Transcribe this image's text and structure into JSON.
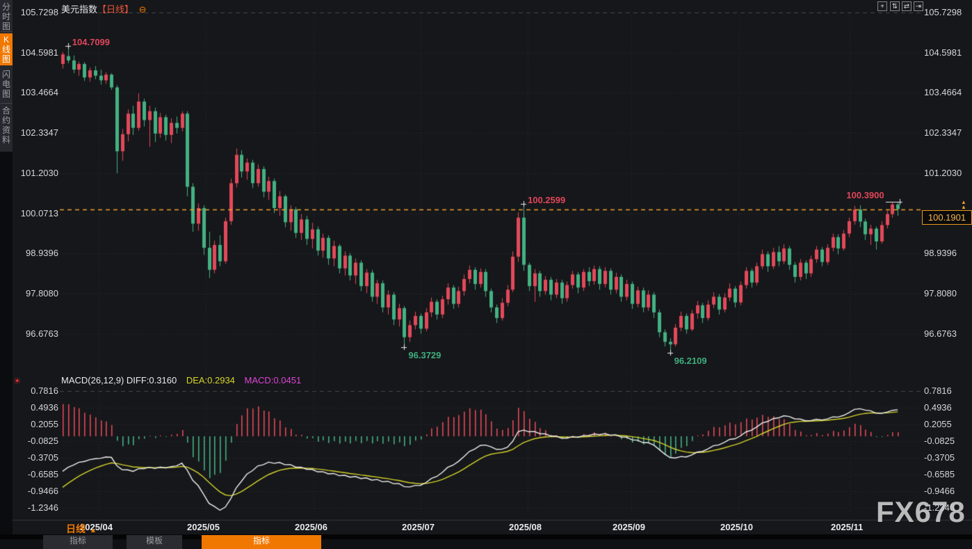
{
  "header": {
    "symbol": "美元指数",
    "period_tag": "【日线】",
    "settings_icon": "gear-icon"
  },
  "sidebar": {
    "items": [
      {
        "label": "分时图",
        "active": false
      },
      {
        "label": "K线图",
        "active": true
      },
      {
        "label": "闪电图",
        "active": false
      },
      {
        "label": "合约资料",
        "active": false
      }
    ]
  },
  "toolbar": {
    "icons": [
      {
        "name": "crosshair-icon",
        "glyph": "+"
      },
      {
        "name": "zoom-y-axis-icon",
        "glyph": "⇅"
      },
      {
        "name": "zoom-x-axis-icon",
        "glyph": "⇄"
      },
      {
        "name": "pan-right-icon",
        "glyph": "⇥"
      }
    ]
  },
  "price_axis_labels": [
    "105.7298",
    "104.5981",
    "103.4664",
    "102.3347",
    "101.2030",
    "100.0713",
    "98.9396",
    "97.8080",
    "96.6763"
  ],
  "macd_axis_labels": [
    "0.7816",
    "0.4936",
    "0.2055",
    "-0.0825",
    "-0.3705",
    "-0.6585",
    "-0.9466",
    "-1.2346"
  ],
  "date_labels": [
    "2025/04",
    "2025/05",
    "2025/06",
    "2025/07",
    "2025/08",
    "2025/09",
    "2025/10",
    "2025/11"
  ],
  "macd_header": {
    "main": "MACD(26,12,9) DIFF:0.3160",
    "dea": "DEA:0.2934",
    "macd": "MACD:0.0451"
  },
  "current_price_label": "100.1901",
  "bottom": {
    "period_label": "日线",
    "period_arrow": "▲",
    "tabs": [
      {
        "label": "指标",
        "active": false
      },
      {
        "label": "模板",
        "active": false
      },
      {
        "label": "指标",
        "active": true
      }
    ]
  },
  "watermark": "FX678",
  "colors": {
    "up": "#e2495a",
    "down": "#43b183",
    "dif_line": "#f0f0f0",
    "dea_line": "#d4d42c",
    "accent_orange": "#f07800",
    "current_price_line": "#f0a030",
    "annotation_up": "#e0455a",
    "annotation_down": "#3fae7e"
  },
  "chart_data": {
    "type": "candlestick+macd",
    "symbol": "美元指数",
    "interval": "日线",
    "price_axis_range": [
      96.1,
      105.7298
    ],
    "price_axis_ticks": [
      105.7298,
      104.5981,
      103.4664,
      102.3347,
      101.203,
      100.0713,
      98.9396,
      97.808,
      96.6763
    ],
    "date_ticks": [
      "2025/04",
      "2025/05",
      "2025/06",
      "2025/07",
      "2025/08",
      "2025/09",
      "2025/10",
      "2025/11"
    ],
    "current_price": 100.1901,
    "candles": [
      [
        104.28,
        104.62,
        104.15,
        104.55
      ],
      [
        104.5,
        104.7099,
        104.3,
        104.38
      ],
      [
        104.38,
        104.52,
        104.02,
        104.12
      ],
      [
        104.12,
        104.35,
        103.95,
        104.28
      ],
      [
        104.28,
        104.33,
        103.8,
        103.9
      ],
      [
        103.9,
        104.18,
        103.78,
        104.1
      ],
      [
        104.1,
        104.22,
        103.85,
        103.95
      ],
      [
        103.95,
        104.12,
        103.7,
        103.82
      ],
      [
        103.82,
        104.05,
        103.72,
        103.98
      ],
      [
        103.98,
        104.02,
        103.55,
        103.62
      ],
      [
        103.62,
        103.68,
        101.2,
        101.82
      ],
      [
        101.82,
        102.45,
        101.55,
        102.3
      ],
      [
        102.3,
        103.0,
        102.1,
        102.88
      ],
      [
        102.88,
        103.1,
        102.28,
        102.48
      ],
      [
        102.48,
        103.45,
        102.4,
        103.22
      ],
      [
        103.22,
        103.3,
        102.52,
        102.7
      ],
      [
        102.7,
        103.1,
        101.95,
        102.95
      ],
      [
        102.95,
        103.05,
        102.08,
        102.32
      ],
      [
        102.32,
        102.9,
        102.2,
        102.78
      ],
      [
        102.78,
        102.85,
        102.12,
        102.28
      ],
      [
        102.28,
        102.75,
        102.05,
        102.62
      ],
      [
        102.62,
        102.8,
        102.32,
        102.48
      ],
      [
        102.48,
        102.95,
        102.38,
        102.88
      ],
      [
        102.88,
        102.95,
        100.55,
        100.82
      ],
      [
        100.82,
        100.92,
        99.55,
        99.78
      ],
      [
        99.78,
        100.35,
        99.58,
        100.22
      ],
      [
        100.22,
        100.3,
        98.9,
        99.1
      ],
      [
        99.1,
        99.55,
        98.25,
        98.48
      ],
      [
        98.48,
        99.3,
        98.38,
        99.18
      ],
      [
        99.18,
        99.45,
        98.58,
        98.72
      ],
      [
        98.72,
        99.95,
        98.65,
        99.85
      ],
      [
        99.85,
        101.05,
        99.75,
        100.92
      ],
      [
        100.92,
        101.9,
        100.8,
        101.72
      ],
      [
        101.72,
        101.85,
        101.08,
        101.25
      ],
      [
        101.25,
        101.62,
        101.02,
        101.5
      ],
      [
        101.5,
        101.58,
        100.78,
        100.92
      ],
      [
        100.92,
        101.45,
        100.82,
        101.32
      ],
      [
        101.32,
        101.4,
        100.52,
        100.68
      ],
      [
        100.68,
        101.1,
        100.45,
        100.98
      ],
      [
        100.98,
        101.05,
        100.08,
        100.22
      ],
      [
        100.22,
        100.7,
        100.0,
        100.55
      ],
      [
        100.55,
        100.6,
        99.68,
        99.82
      ],
      [
        99.82,
        100.3,
        99.58,
        100.18
      ],
      [
        100.18,
        100.25,
        99.38,
        99.52
      ],
      [
        99.52,
        100.05,
        99.32,
        99.9
      ],
      [
        99.9,
        100.0,
        99.18,
        99.35
      ],
      [
        99.35,
        99.8,
        99.08,
        99.62
      ],
      [
        99.62,
        99.7,
        98.88,
        99.02
      ],
      [
        99.02,
        99.5,
        98.82,
        99.38
      ],
      [
        99.38,
        99.45,
        98.62,
        98.8
      ],
      [
        98.8,
        99.3,
        98.58,
        99.15
      ],
      [
        99.15,
        99.2,
        98.38,
        98.52
      ],
      [
        98.52,
        99.0,
        98.32,
        98.88
      ],
      [
        98.88,
        98.95,
        98.18,
        98.32
      ],
      [
        98.32,
        98.8,
        98.08,
        98.68
      ],
      [
        98.68,
        98.75,
        97.88,
        98.02
      ],
      [
        98.02,
        98.5,
        97.82,
        98.4
      ],
      [
        98.4,
        98.48,
        97.58,
        97.72
      ],
      [
        97.72,
        98.2,
        97.52,
        98.1
      ],
      [
        98.1,
        98.18,
        97.28,
        97.42
      ],
      [
        97.42,
        97.9,
        97.22,
        97.78
      ],
      [
        97.78,
        97.85,
        96.92,
        97.08
      ],
      [
        97.08,
        97.52,
        96.88,
        97.4
      ],
      [
        97.4,
        97.46,
        96.3729,
        96.58
      ],
      [
        96.58,
        97.05,
        96.45,
        96.92
      ],
      [
        96.92,
        97.3,
        96.8,
        97.18
      ],
      [
        97.18,
        97.25,
        96.68,
        96.82
      ],
      [
        96.82,
        97.4,
        96.75,
        97.28
      ],
      [
        97.28,
        97.7,
        97.15,
        97.58
      ],
      [
        97.58,
        97.65,
        97.08,
        97.22
      ],
      [
        97.22,
        97.75,
        97.12,
        97.65
      ],
      [
        97.65,
        98.1,
        97.5,
        97.98
      ],
      [
        97.98,
        98.05,
        97.38,
        97.52
      ],
      [
        97.52,
        98.0,
        97.42,
        97.88
      ],
      [
        97.88,
        98.35,
        97.75,
        98.22
      ],
      [
        98.22,
        98.6,
        98.1,
        98.48
      ],
      [
        98.48,
        98.55,
        97.92,
        98.08
      ],
      [
        98.08,
        98.52,
        97.98,
        98.42
      ],
      [
        98.42,
        98.5,
        97.72,
        97.88
      ],
      [
        97.88,
        97.95,
        97.28,
        97.42
      ],
      [
        97.42,
        97.5,
        96.98,
        97.12
      ],
      [
        97.12,
        97.68,
        97.05,
        97.55
      ],
      [
        97.55,
        98.05,
        97.45,
        97.92
      ],
      [
        97.92,
        99.0,
        97.85,
        98.85
      ],
      [
        98.85,
        100.1,
        98.7,
        99.95
      ],
      [
        99.95,
        100.2599,
        98.45,
        98.62
      ],
      [
        98.62,
        98.68,
        97.88,
        98.02
      ],
      [
        98.02,
        98.5,
        97.58,
        98.38
      ],
      [
        98.38,
        98.45,
        97.72,
        97.88
      ],
      [
        97.88,
        98.3,
        97.78,
        98.2
      ],
      [
        98.2,
        98.28,
        97.62,
        97.78
      ],
      [
        97.78,
        98.22,
        97.68,
        98.12
      ],
      [
        98.12,
        98.2,
        97.52,
        97.68
      ],
      [
        97.68,
        98.15,
        97.58,
        98.05
      ],
      [
        98.05,
        98.45,
        97.95,
        98.35
      ],
      [
        98.35,
        98.42,
        97.82,
        97.98
      ],
      [
        97.98,
        98.5,
        97.88,
        98.42
      ],
      [
        98.42,
        98.55,
        98.02,
        98.16
      ],
      [
        98.16,
        98.6,
        98.06,
        98.5
      ],
      [
        98.5,
        98.58,
        97.92,
        98.08
      ],
      [
        98.08,
        98.55,
        97.98,
        98.45
      ],
      [
        98.45,
        98.52,
        97.78,
        97.92
      ],
      [
        97.92,
        98.4,
        97.82,
        98.28
      ],
      [
        98.28,
        98.35,
        97.58,
        97.72
      ],
      [
        97.72,
        98.2,
        97.62,
        98.08
      ],
      [
        98.08,
        98.15,
        97.38,
        97.52
      ],
      [
        97.52,
        98.0,
        97.42,
        97.9
      ],
      [
        97.9,
        97.98,
        97.28,
        97.42
      ],
      [
        97.42,
        97.9,
        97.32,
        97.78
      ],
      [
        97.78,
        97.85,
        97.12,
        97.28
      ],
      [
        97.28,
        97.36,
        96.58,
        96.72
      ],
      [
        96.72,
        96.8,
        96.32,
        96.45
      ],
      [
        96.45,
        96.55,
        96.2109,
        96.38
      ],
      [
        96.38,
        96.95,
        96.32,
        96.85
      ],
      [
        96.85,
        97.3,
        96.75,
        97.18
      ],
      [
        97.18,
        97.25,
        96.68,
        96.8
      ],
      [
        96.8,
        97.35,
        96.75,
        97.25
      ],
      [
        97.25,
        97.6,
        97.1,
        97.48
      ],
      [
        97.48,
        97.55,
        96.98,
        97.12
      ],
      [
        97.12,
        97.62,
        97.05,
        97.5
      ],
      [
        97.5,
        97.85,
        97.4,
        97.72
      ],
      [
        97.72,
        97.8,
        97.22,
        97.36
      ],
      [
        97.36,
        97.82,
        97.28,
        97.7
      ],
      [
        97.7,
        98.1,
        97.6,
        97.95
      ],
      [
        97.95,
        98.02,
        97.42,
        97.56
      ],
      [
        97.56,
        98.15,
        97.48,
        98.05
      ],
      [
        98.05,
        98.55,
        97.95,
        98.45
      ],
      [
        98.45,
        98.52,
        97.98,
        98.12
      ],
      [
        98.12,
        98.68,
        98.04,
        98.58
      ],
      [
        98.58,
        99.05,
        98.5,
        98.92
      ],
      [
        98.92,
        99.0,
        98.42,
        98.58
      ],
      [
        98.58,
        99.1,
        98.5,
        98.98
      ],
      [
        98.98,
        99.15,
        98.58,
        98.72
      ],
      [
        98.72,
        99.2,
        98.64,
        99.08
      ],
      [
        99.08,
        99.15,
        98.48,
        98.62
      ],
      [
        98.62,
        98.7,
        98.12,
        98.28
      ],
      [
        98.28,
        98.78,
        98.18,
        98.68
      ],
      [
        98.68,
        98.75,
        98.22,
        98.38
      ],
      [
        98.38,
        98.88,
        98.28,
        98.78
      ],
      [
        98.78,
        99.15,
        98.68,
        99.05
      ],
      [
        99.05,
        99.12,
        98.58,
        98.7
      ],
      [
        98.7,
        99.2,
        98.62,
        99.1
      ],
      [
        99.1,
        99.5,
        99.0,
        99.4
      ],
      [
        99.4,
        99.48,
        98.92,
        99.08
      ],
      [
        99.08,
        99.6,
        99.02,
        99.5
      ],
      [
        99.5,
        99.95,
        99.4,
        99.85
      ],
      [
        99.85,
        100.28,
        99.75,
        100.18
      ],
      [
        100.18,
        100.3,
        99.68,
        99.84
      ],
      [
        99.84,
        99.92,
        99.32,
        99.48
      ],
      [
        99.48,
        99.75,
        99.18,
        99.64
      ],
      [
        99.64,
        99.7,
        99.05,
        99.28
      ],
      [
        99.28,
        99.85,
        99.22,
        99.74
      ],
      [
        99.74,
        100.15,
        99.64,
        100.05
      ],
      [
        100.05,
        100.39,
        99.95,
        100.32
      ],
      [
        100.32,
        100.38,
        100.0,
        100.1901
      ]
    ],
    "extremes": [
      {
        "index": 1,
        "price": 104.7099,
        "label": "104.7099",
        "side": "above",
        "kind": "up"
      },
      {
        "index": 85,
        "price": 100.2599,
        "label": "100.2599",
        "side": "above",
        "kind": "up"
      },
      {
        "index": 153,
        "price": 100.39,
        "label": "100.3900",
        "side": "above",
        "kind": "up",
        "marker": "line",
        "align": "left"
      },
      {
        "index": 63,
        "price": 96.3729,
        "label": "96.3729",
        "side": "below",
        "kind": "down"
      },
      {
        "index": 112,
        "price": 96.2109,
        "label": "96.2109",
        "side": "below",
        "kind": "down"
      }
    ],
    "macd": {
      "type": "macd",
      "params": [
        26,
        12,
        9
      ],
      "diff": 0.316,
      "dea": 0.2934,
      "macd": 0.0451,
      "axis_ticks": [
        0.7816,
        0.4936,
        0.2055,
        -0.0825,
        -0.3705,
        -0.6585,
        -0.9466,
        -1.2346
      ],
      "seed": {
        "ema12": 104.0,
        "ema26": 104.7,
        "dea": -0.95
      }
    }
  }
}
